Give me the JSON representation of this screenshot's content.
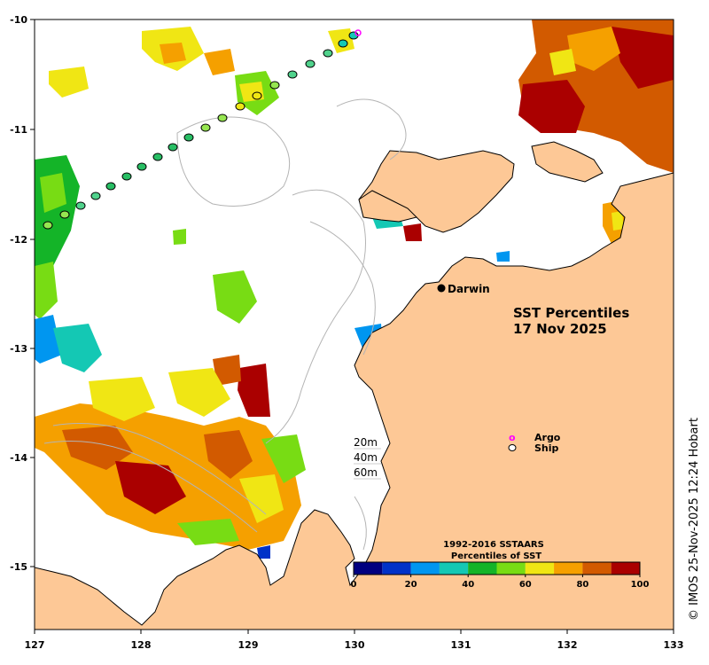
{
  "map": {
    "title_line1": "SST Percentiles",
    "title_line2": "17 Nov 2025",
    "place_label": "Darwin",
    "credit": "© IMOS 25-Nov-2025 12:24 Hobart",
    "lon_ticks": [
      "127",
      "128",
      "129",
      "130",
      "131",
      "132",
      "133"
    ],
    "lat_ticks": [
      "-10",
      "-11",
      "-12",
      "-13",
      "-14",
      "-15"
    ],
    "colors": {
      "land": "#fdc896",
      "coast": "#000000",
      "contour": "#b4b4b4",
      "ship_outline": "#000000",
      "argo": "#ff00ff"
    }
  },
  "legend": {
    "argo_symbol": "o",
    "argo_label": "Argo",
    "ship_label": "Ship"
  },
  "depth_contours": {
    "labels": [
      "20m",
      "40m",
      "60m"
    ]
  },
  "colorbar": {
    "title_line1": "1992-2016 SSTAARS",
    "title_line2": "Percentiles of SST",
    "tick_labels": [
      "0",
      "20",
      "40",
      "60",
      "80",
      "100"
    ],
    "colors": [
      "#000080",
      "#0032c8",
      "#0096f0",
      "#14c8b4",
      "#14b428",
      "#78dc14",
      "#f0e614",
      "#f5a000",
      "#d25a00",
      "#aa0000"
    ]
  },
  "ship_track": {
    "colors": [
      "#96e650",
      "#96e650",
      "#50d28c",
      "#50d28c",
      "#28be64",
      "#28be64",
      "#28be64",
      "#28be64",
      "#28be64",
      "#28be64",
      "#96e650",
      "#96e650",
      "#f0e614",
      "#f0e614",
      "#96e650",
      "#50d28c",
      "#50d28c",
      "#50d28c",
      "#14c8b4",
      "#14c8b4"
    ]
  }
}
